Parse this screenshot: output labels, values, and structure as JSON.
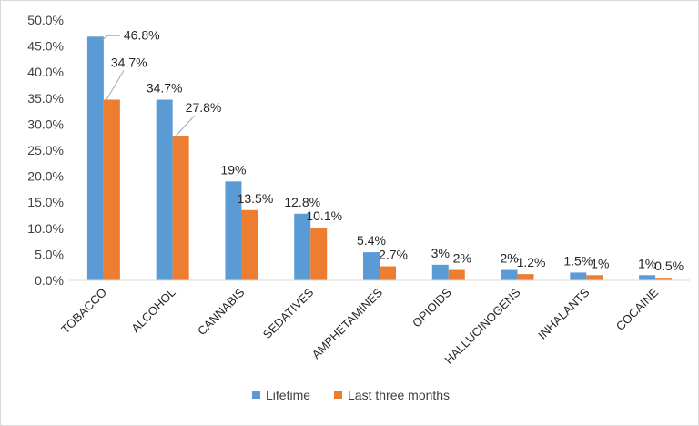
{
  "chart_data": {
    "type": "bar",
    "title": "",
    "xlabel": "",
    "ylabel": "",
    "ylim": [
      0,
      50
    ],
    "ytick_labels": [
      "0.0%",
      "5.0%",
      "10.0%",
      "15.0%",
      "20.0%",
      "25.0%",
      "30.0%",
      "35.0%",
      "40.0%",
      "45.0%",
      "50.0%"
    ],
    "grid": false,
    "legend_position": "bottom",
    "categories": [
      "TOBACCO",
      "ALCOHOL",
      "CANNABIS",
      "SEDATIVES",
      "AMPHETAMINES",
      "OPIOIDS",
      "HALLUCINOGENS",
      "INHALANTS",
      "COCAINE"
    ],
    "series": [
      {
        "name": "Lifetime",
        "color": "#5B9BD5",
        "values": [
          46.8,
          34.7,
          19,
          12.8,
          5.4,
          3,
          2,
          1.5,
          1
        ],
        "labels": [
          "46.8%",
          "34.7%",
          "19%",
          "12.8%",
          "5.4%",
          "3%",
          "2%",
          "1.5%",
          "1%"
        ]
      },
      {
        "name": "Last three months",
        "color": "#ED7D31",
        "values": [
          34.7,
          27.8,
          13.5,
          10.1,
          2.7,
          2,
          1.2,
          1,
          0.5
        ],
        "labels": [
          "34.7%",
          "27.8%",
          "13.5%",
          "10.1%",
          "2.7%",
          "2%",
          "1.2%",
          "1%",
          "0.5%"
        ]
      }
    ]
  }
}
